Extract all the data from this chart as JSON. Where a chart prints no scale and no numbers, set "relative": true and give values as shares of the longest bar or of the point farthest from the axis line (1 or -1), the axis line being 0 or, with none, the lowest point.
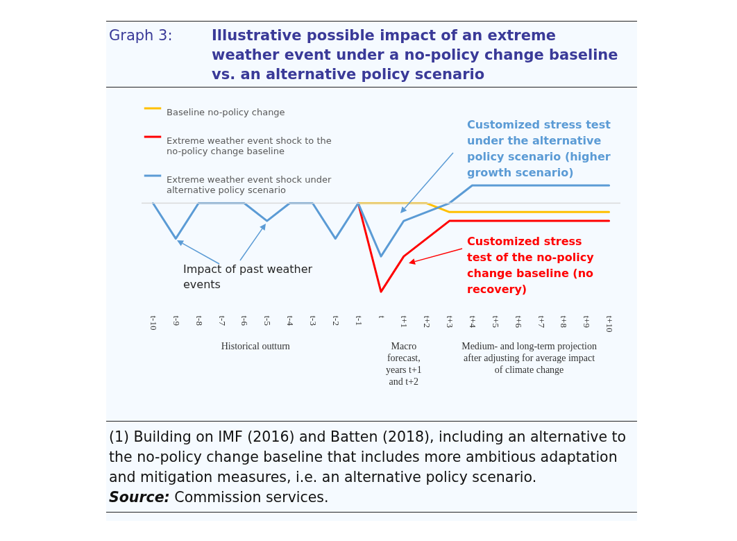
{
  "chart_data": {
    "type": "line",
    "title": "Graph 3: Illustrative possible impact of an extreme weather event under a no-policy change baseline vs. an alternative policy scenario",
    "relative": true,
    "legend": "top left",
    "line_style": "solid",
    "categories": [
      "t-10",
      "t-9",
      "t-8",
      "t-7",
      "t-6",
      "t-5",
      "t-4",
      "t-3",
      "t-2",
      "t-1",
      "t",
      "t+1",
      "t+2",
      "t+3",
      "t+4",
      "t+5",
      "t+6",
      "t+7",
      "t+8",
      "t+9",
      "t+10"
    ],
    "series": [
      {
        "name": "Baseline no-policy change",
        "color": "#ffc000",
        "values": [
          null,
          null,
          null,
          null,
          null,
          null,
          null,
          null,
          null,
          0,
          0,
          0,
          0,
          -0.1,
          -0.1,
          -0.1,
          -0.1,
          -0.1,
          -0.1,
          -0.1,
          -0.1
        ]
      },
      {
        "name": "Extreme weather event shock to the no-policy change baseline",
        "color": "#ff0000",
        "values": [
          null,
          null,
          null,
          null,
          null,
          null,
          null,
          null,
          null,
          0,
          -1,
          -0.6,
          -0.4,
          -0.2,
          -0.2,
          -0.2,
          -0.2,
          -0.2,
          -0.2,
          -0.2,
          -0.2
        ]
      },
      {
        "name": "Extreme weather event shock under alternative policy scenario",
        "color": "#5b9bd5",
        "values": [
          0,
          -0.4,
          0,
          0,
          0,
          -0.2,
          0,
          0,
          -0.4,
          0,
          -0.6,
          -0.2,
          -0.1,
          0,
          0.2,
          0.2,
          0.2,
          0.2,
          0.2,
          0.2,
          0.2
        ]
      }
    ],
    "ref_lines": [
      {
        "axis": "y",
        "value": 0,
        "color": "#d9d9d9"
      }
    ],
    "annotations": [
      "Customized stress test under the alternative policy scenario (higher growth scenario)",
      "Customized stress test of the no-policy change baseline (no recovery)",
      "Impact of past weather events",
      "Historical outturn",
      "Macro forecast, years t+1 and t+2",
      "Medium- and long-term projection after adjusting for average impact of climate change",
      "(1) Building on IMF (2016) and Batten (2018), including an alternative to the no-policy change baseline that includes more ambitious adaptation and mitigation measures, i.e. an alternative policy scenario.",
      "Source: Commission services."
    ]
  }
}
